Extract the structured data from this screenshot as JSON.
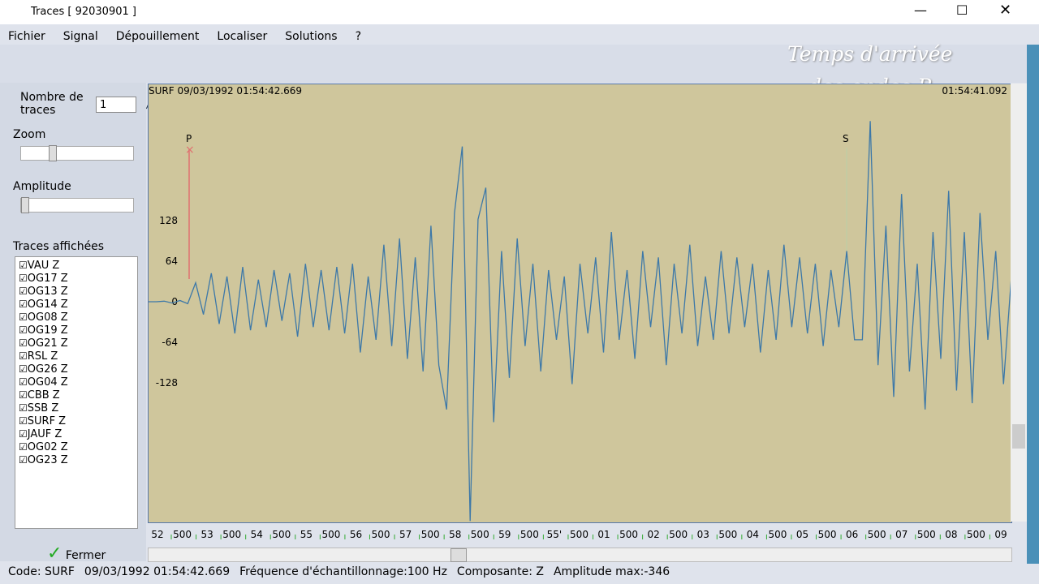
{
  "window": {
    "title": "Traces  [ 92030901 ]"
  },
  "menu": [
    "Fichier",
    "Signal",
    "Dépouillement",
    "Localiser",
    "Solutions",
    "?"
  ],
  "overlay": {
    "line1": "Temps d'arrivée",
    "line2": "des ondes P"
  },
  "panel": {
    "count_label": "Nombre de traces",
    "count_value": "1",
    "zoom": "Zoom",
    "amplitude": "Amplitude",
    "traces_title": "Traces affichées",
    "traces": [
      "VAU  Z",
      "OG17  Z",
      "OG13  Z",
      "OG14  Z",
      "OG08  Z",
      "OG19  Z",
      "OG21  Z",
      "RSL  Z",
      "OG26  Z",
      "OG04  Z",
      "CBB  Z",
      "SSB  Z",
      "SURF  Z",
      "JAUF  Z",
      "OG02  Z",
      "OG23  Z"
    ],
    "close": "Fermer"
  },
  "plot": {
    "header_left": "SURF 09/03/1992 01:54:42.669",
    "header_right": "01:54:41.092",
    "p_label": "P",
    "s_label": "S",
    "time_labels": [
      "52",
      "500",
      "53",
      "500",
      "54",
      "500",
      "55",
      "500",
      "56",
      "500",
      "57",
      "500",
      "58",
      "500",
      "59",
      "500",
      "55'",
      "500",
      "01",
      "500",
      "02",
      "500",
      "03",
      "500",
      "04",
      "500",
      "05",
      "500",
      "06",
      "500",
      "07",
      "500",
      "08",
      "500",
      "09"
    ]
  },
  "chart_data": {
    "type": "line",
    "color": "#3d78a8",
    "ylim": [
      -348,
      343
    ],
    "yticks": [
      128,
      64,
      0,
      -64,
      -128
    ],
    "values": [
      0,
      0,
      1,
      -2,
      2,
      -3,
      30,
      -20,
      45,
      -35,
      40,
      -50,
      55,
      -45,
      35,
      -40,
      50,
      -30,
      45,
      -55,
      60,
      -40,
      50,
      -45,
      55,
      -50,
      60,
      -80,
      40,
      -60,
      90,
      -70,
      100,
      -90,
      70,
      -110,
      120,
      -100,
      -170,
      140,
      245,
      -346,
      130,
      180,
      -190,
      80,
      -120,
      100,
      -70,
      60,
      -110,
      50,
      -60,
      40,
      -130,
      60,
      -50,
      70,
      -80,
      110,
      -60,
      50,
      -90,
      80,
      -40,
      70,
      -100,
      60,
      -50,
      90,
      -70,
      40,
      -60,
      80,
      -50,
      70,
      -40,
      60,
      -80,
      50,
      -60,
      90,
      -40,
      70,
      -50,
      60,
      -70,
      50,
      -40,
      80,
      -60,
      -60,
      285,
      -100,
      120,
      -150,
      170,
      -110,
      60,
      -170,
      110,
      -90,
      175,
      -140,
      110,
      -160,
      140,
      -60,
      80,
      -130,
      40
    ]
  },
  "status": [
    "Code: SURF",
    "09/03/1992 01:54:42.669",
    "Fréquence d'échantillonnage:100 Hz",
    "Composante: Z",
    "Amplitude max:-346"
  ]
}
